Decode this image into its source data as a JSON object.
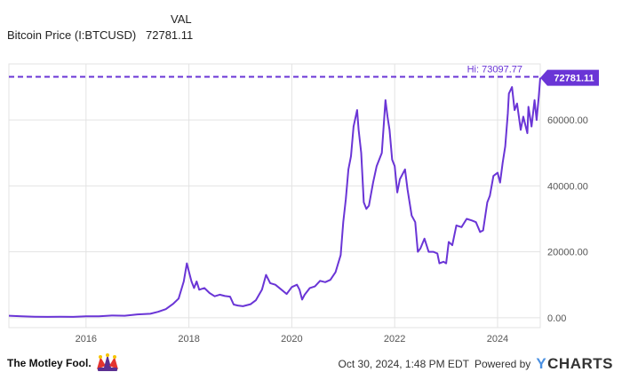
{
  "legend": {
    "column_header": "VAL",
    "series_name": "Bitcoin Price (I:BTCUSD)",
    "series_value": "72781.11"
  },
  "footer": {
    "brand": "The Motley Fool.",
    "timestamp": "Oct 30, 2024, 1:48 PM EDT",
    "powered_by": "Powered by",
    "provider": "CHARTS",
    "provider_mark": "Y"
  },
  "colors": {
    "line": "#6a35d6",
    "badge": "#6a35d6",
    "grid": "#e3e3e3",
    "jester_red": "#e4342f",
    "jester_purple": "#5b2f91",
    "jester_yellow": "#f5c400"
  },
  "chart_data": {
    "type": "line",
    "x_unit": "year",
    "xlim": [
      2014.5,
      2024.83
    ],
    "ylim": [
      -3000,
      77000
    ],
    "xticks": [
      2016,
      2018,
      2020,
      2022,
      2024
    ],
    "xtick_labels": [
      "2016",
      "2018",
      "2020",
      "2022",
      "2024"
    ],
    "yticks": [
      0,
      20000,
      40000,
      60000
    ],
    "ytick_labels": [
      "0.00",
      "20000.00",
      "40000.00",
      "60000.00"
    ],
    "grid": true,
    "high": {
      "label": "Hi: 73097.77",
      "value": 73097.77
    },
    "last": {
      "label": "72781.11",
      "value": 72781.11
    },
    "series": [
      {
        "x": [
          2014.5,
          2014.75,
          2015.0,
          2015.25,
          2015.5,
          2015.75,
          2016.0,
          2016.25,
          2016.5,
          2016.75,
          2017.0,
          2017.25,
          2017.4,
          2017.55,
          2017.7,
          2017.8,
          2017.9,
          2017.96,
          2018.0,
          2018.05,
          2018.1,
          2018.15,
          2018.2,
          2018.3,
          2018.4,
          2018.5,
          2018.6,
          2018.7,
          2018.8,
          2018.87,
          2018.95,
          2019.05,
          2019.2,
          2019.3,
          2019.42,
          2019.5,
          2019.58,
          2019.68,
          2019.8,
          2019.9,
          2020.0,
          2020.1,
          2020.15,
          2020.2,
          2020.25,
          2020.35,
          2020.45,
          2020.55,
          2020.65,
          2020.75,
          2020.85,
          2020.95,
          2021.0,
          2021.05,
          2021.1,
          2021.15,
          2021.2,
          2021.27,
          2021.3,
          2021.35,
          2021.4,
          2021.45,
          2021.5,
          2021.58,
          2021.65,
          2021.75,
          2021.82,
          2021.86,
          2021.9,
          2021.95,
          2022.0,
          2022.05,
          2022.1,
          2022.2,
          2022.25,
          2022.33,
          2022.4,
          2022.45,
          2022.5,
          2022.58,
          2022.66,
          2022.75,
          2022.83,
          2022.87,
          2022.95,
          2023.0,
          2023.05,
          2023.12,
          2023.2,
          2023.3,
          2023.4,
          2023.5,
          2023.58,
          2023.66,
          2023.72,
          2023.8,
          2023.85,
          2023.92,
          2024.0,
          2024.05,
          2024.1,
          2024.15,
          2024.2,
          2024.22,
          2024.28,
          2024.33,
          2024.38,
          2024.45,
          2024.5,
          2024.58,
          2024.6,
          2024.66,
          2024.72,
          2024.76,
          2024.8,
          2024.83
        ],
        "values": [
          600,
          450,
          300,
          250,
          280,
          250,
          430,
          420,
          650,
          610,
          1000,
          1200,
          1800,
          2600,
          4300,
          5800,
          11000,
          16500,
          14000,
          11000,
          9000,
          11000,
          8500,
          9000,
          7500,
          6500,
          7000,
          6600,
          6400,
          4000,
          3700,
          3500,
          4100,
          5300,
          8500,
          13000,
          10500,
          10000,
          8500,
          7200,
          9300,
          10000,
          8500,
          5500,
          7000,
          9000,
          9500,
          11200,
          10800,
          11500,
          13800,
          19000,
          29000,
          36000,
          45000,
          49000,
          58000,
          63000,
          57000,
          50000,
          35000,
          33000,
          34000,
          41000,
          46000,
          50000,
          66000,
          61000,
          57000,
          48000,
          46000,
          38000,
          42000,
          45000,
          39000,
          31000,
          29000,
          20000,
          21000,
          24000,
          20000,
          20000,
          19500,
          16500,
          17000,
          16500,
          23000,
          22000,
          28000,
          27500,
          30000,
          29500,
          29000,
          26000,
          26500,
          35000,
          37000,
          43000,
          44000,
          41000,
          47000,
          52000,
          62000,
          68000,
          70000,
          63000,
          65000,
          57000,
          61000,
          56000,
          64000,
          58000,
          66000,
          60000,
          67000,
          72781.11
        ]
      }
    ]
  }
}
